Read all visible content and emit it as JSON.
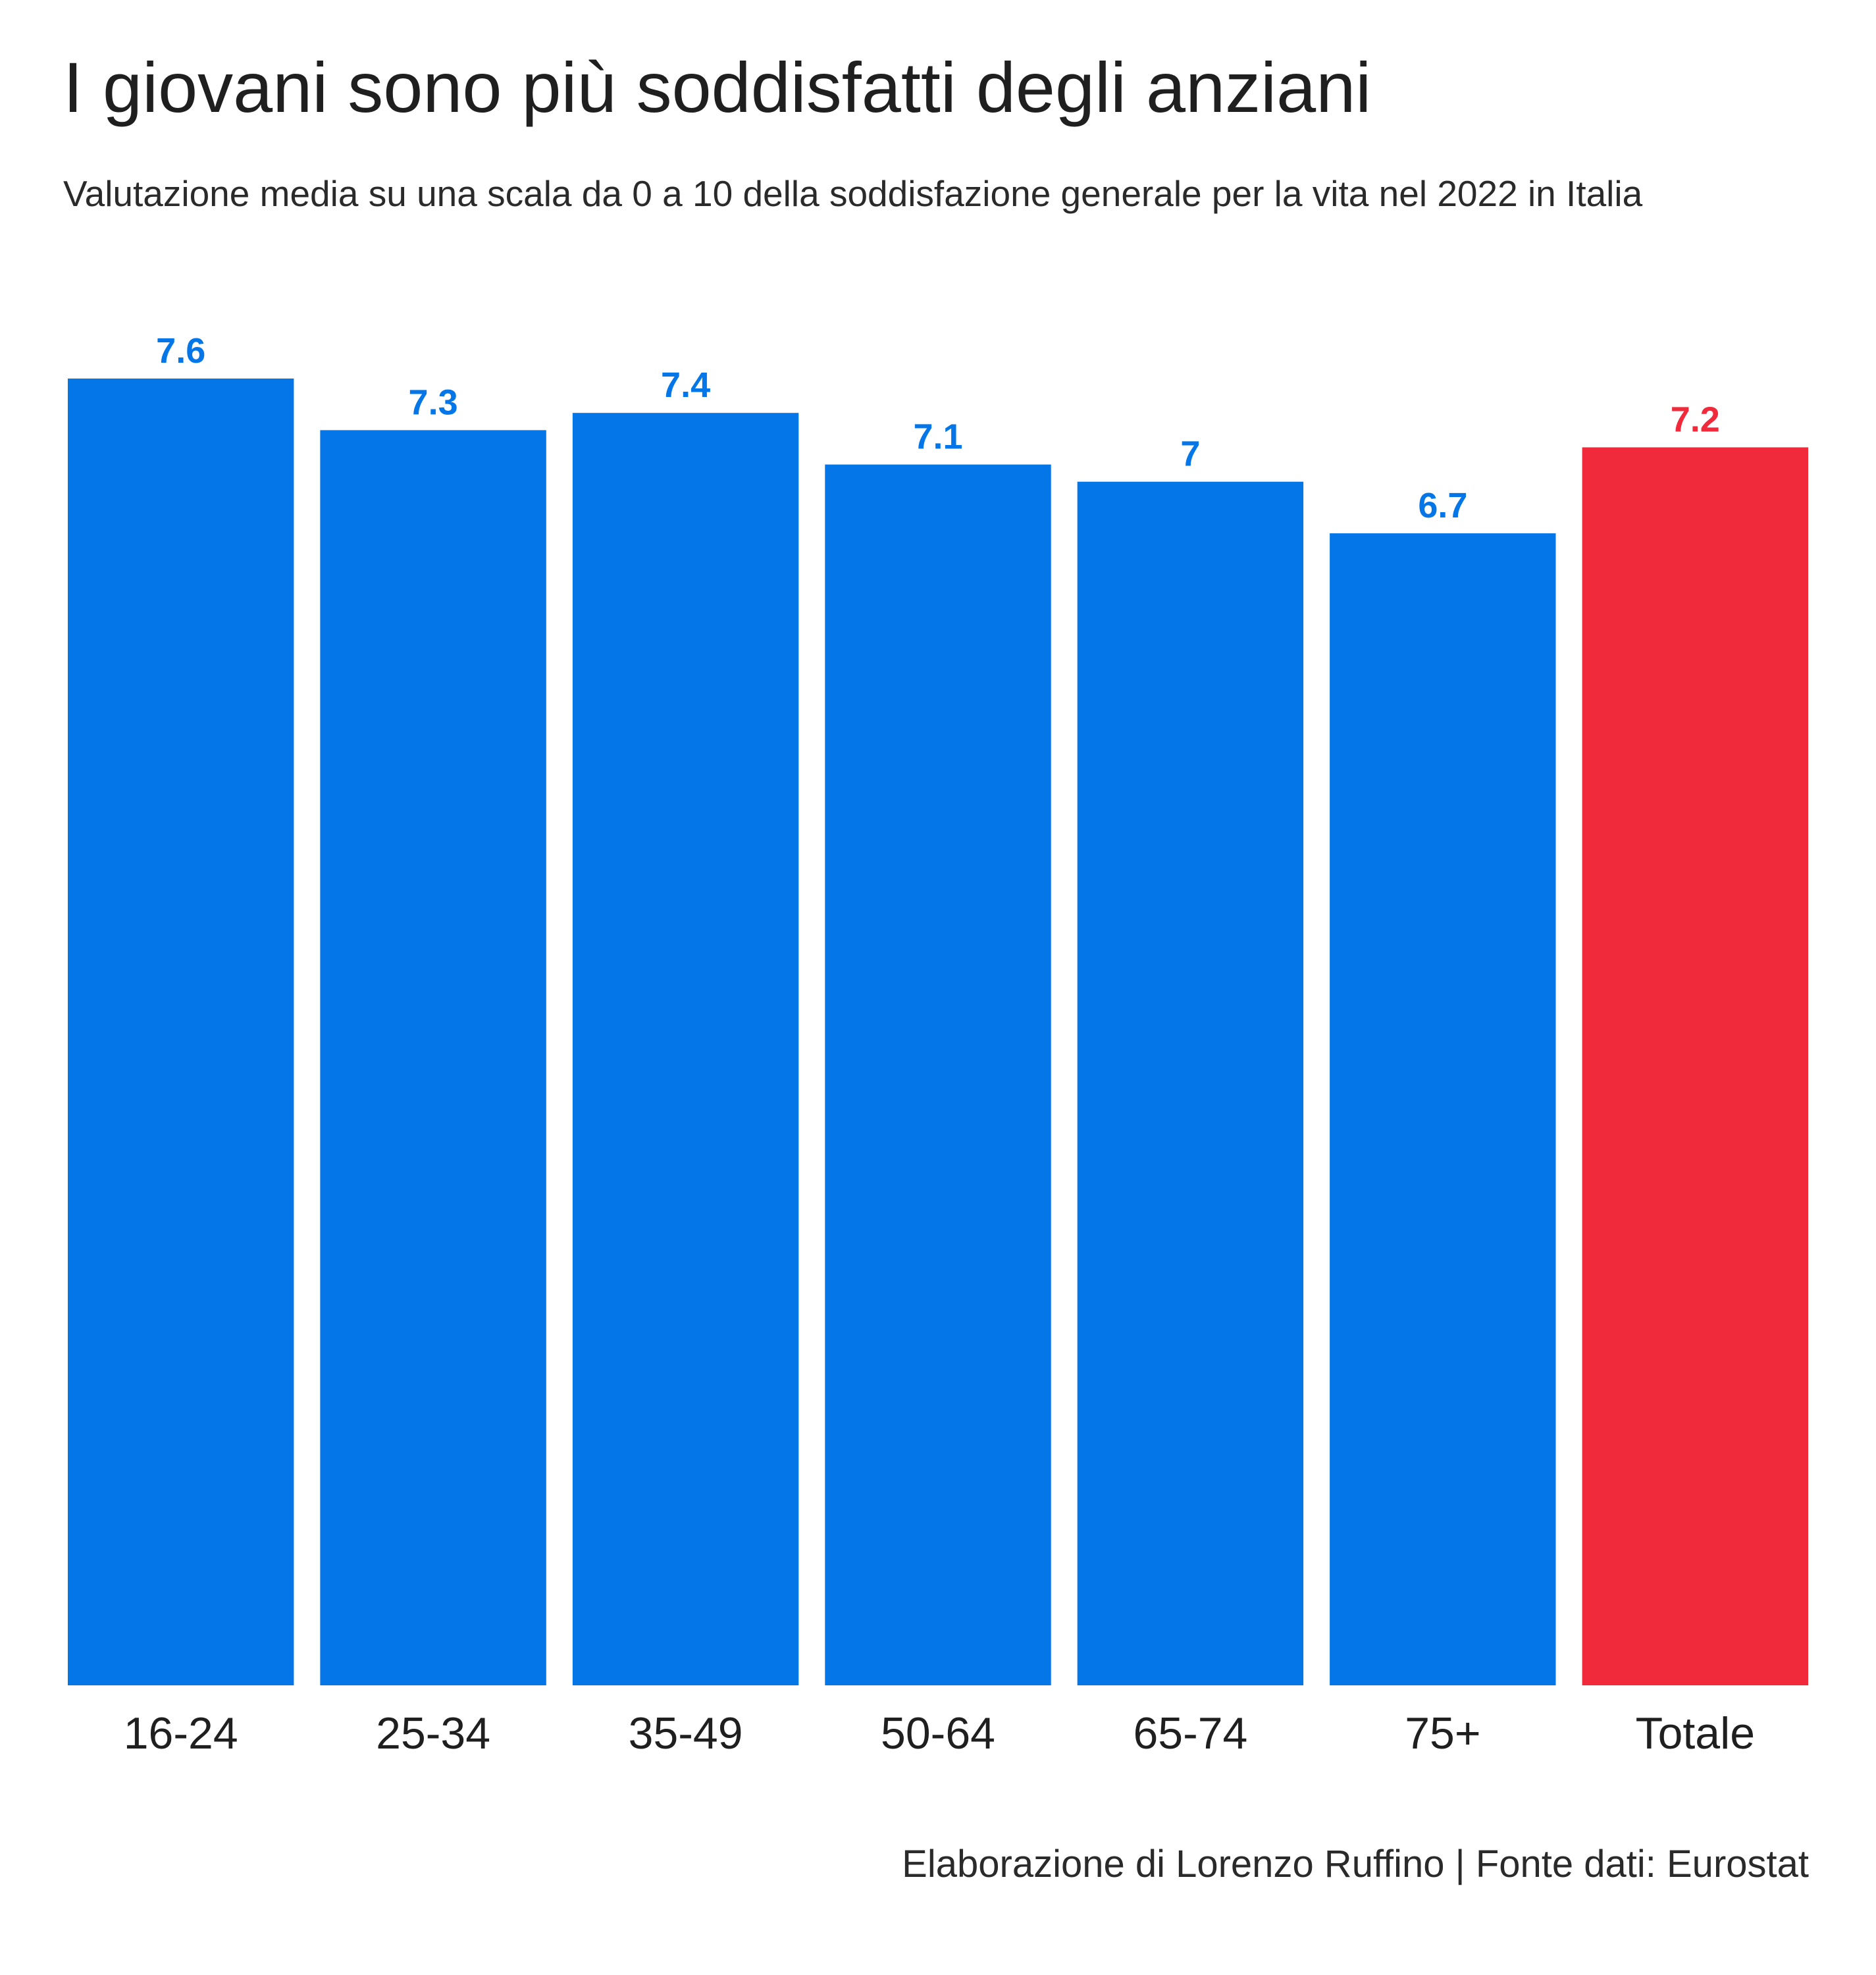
{
  "chart_data": {
    "type": "bar",
    "title": "I giovani sono più soddisfatti degli anziani",
    "subtitle": "Valutazione media su una scala da 0 a 10 della soddisfazione generale per la vita nel 2022 in Italia",
    "categories": [
      "16-24",
      "25-34",
      "35-49",
      "50-64",
      "65-74",
      "75+",
      "Totale"
    ],
    "values": [
      7.6,
      7.3,
      7.4,
      7.1,
      7,
      6.7,
      7.2
    ],
    "value_labels": [
      "7.6",
      "7.3",
      "7.4",
      "7.1",
      "7",
      "6.7",
      "7.2"
    ],
    "highlight_category": "Totale",
    "ylim": [
      0,
      7.6
    ],
    "xlabel": "",
    "ylabel": "",
    "grid": false,
    "legend": "none",
    "caption": "Elaborazione di Lorenzo Ruffino | Fonte dati: Eurostat"
  },
  "colors": {
    "bar": "#0576e8",
    "highlight": "#f0293b",
    "text": "#1f1f1f"
  }
}
